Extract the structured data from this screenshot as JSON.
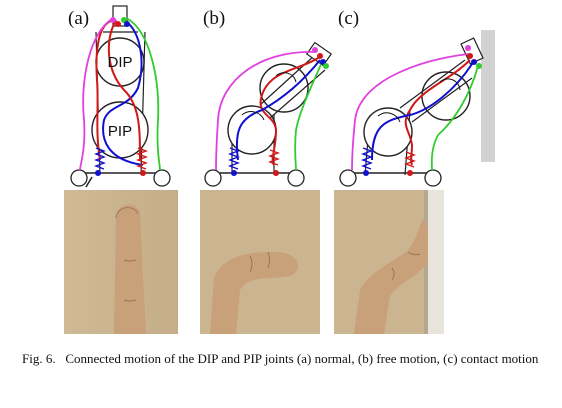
{
  "panels": [
    {
      "label": "(a)",
      "joint_top": "DIP",
      "joint_bottom": "PIP"
    },
    {
      "label": "(b)"
    },
    {
      "label": "(c)"
    }
  ],
  "colors": {
    "magenta": "#e040e0",
    "red": "#d01818",
    "blue": "#1010d0",
    "green": "#30cc30",
    "mech": "#222222",
    "wall": "#d2d2d2",
    "skin": "#c8a07a",
    "background_photo": "#cbb590"
  },
  "caption": {
    "prefix": "Fig. 6.",
    "text": "Connected motion of the DIP and PIP joints (a) normal, (b) free motion, (c) contact motion"
  }
}
